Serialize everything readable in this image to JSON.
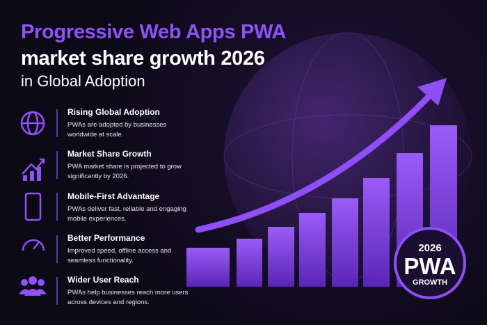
{
  "header": {
    "title_line1": "Progressive Web Apps PWA",
    "title_line2": "market share growth 2026",
    "subtitle": "in Global Adoption"
  },
  "features": [
    {
      "title": "Rising Global Adoption",
      "description": "PWAs are adopted by businesses worldwide at scale."
    },
    {
      "title": "Market Share Growth",
      "description": "PWA market share is projected to grow significantly by 2026."
    },
    {
      "title": "Mobile-First Advantage",
      "description": "PWAs deliver fast, reliable and engaging mobile experiences."
    },
    {
      "title": "Better Performance",
      "description": "Improved speed, offline access and seamless functionality."
    },
    {
      "title": "Wider User Reach",
      "description": "PWAs help businesses reach more users across devices and regions."
    }
  ],
  "badge": {
    "year": "2026",
    "label": "PWA",
    "caption": "GROWTH"
  }
}
